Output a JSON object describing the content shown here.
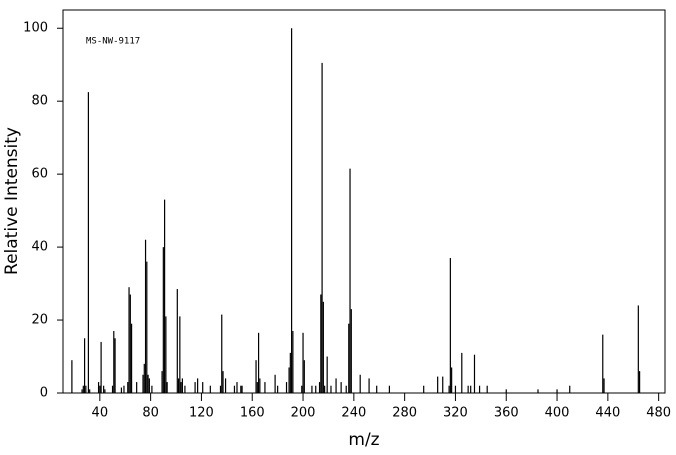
{
  "chart_data": {
    "type": "stem",
    "annotation": "MS-NW-9117",
    "x_label": "m/z",
    "y_label": "Relative Intensity",
    "color": "#000000",
    "xlim": [
      11,
      485
    ],
    "ylim": [
      0,
      105
    ],
    "xticks": [
      40,
      80,
      120,
      160,
      200,
      240,
      280,
      320,
      360,
      400,
      440,
      480
    ],
    "yticks": [
      0,
      20,
      40,
      60,
      80,
      100
    ],
    "x": [
      18,
      26,
      27,
      28,
      29,
      31,
      32,
      39,
      40,
      41,
      43,
      44,
      50,
      51,
      52,
      57,
      59,
      62,
      63,
      64,
      65,
      69,
      74,
      75,
      76,
      77,
      78,
      79,
      81,
      89,
      90,
      91,
      92,
      93,
      101,
      102,
      103,
      104,
      105,
      107,
      115,
      117,
      121,
      127,
      135,
      136,
      137,
      139,
      146,
      148,
      151,
      152,
      163,
      164,
      165,
      166,
      170,
      178,
      180,
      187,
      189,
      190,
      191,
      192,
      199,
      200,
      201,
      207,
      210,
      213,
      214,
      215,
      216,
      217,
      219,
      222,
      226,
      230,
      234,
      236,
      237,
      238,
      245,
      252,
      258,
      268,
      295,
      306,
      310,
      315,
      316,
      317,
      320,
      325,
      330,
      332,
      335,
      339,
      345,
      360,
      385,
      400,
      410,
      436,
      437,
      464,
      465
    ],
    "values": [
      9,
      1,
      2,
      15,
      2,
      82.5,
      1,
      3,
      2,
      14,
      2,
      1,
      2,
      17,
      15,
      1.5,
      2,
      3,
      29,
      27,
      19,
      3,
      5,
      8,
      42,
      36,
      5,
      4,
      2,
      6,
      40,
      53,
      21,
      3,
      28.5,
      4,
      21,
      3,
      4,
      2,
      3,
      4,
      3,
      2,
      2,
      21.5,
      6,
      4,
      2,
      3,
      2,
      2,
      9,
      3,
      16.5,
      4,
      3,
      5,
      2,
      3,
      7,
      11,
      100,
      17,
      2,
      16.5,
      9,
      2,
      2,
      3,
      27,
      90.5,
      25,
      2,
      10,
      2,
      4,
      3,
      2,
      19,
      61.5,
      23,
      5,
      4,
      2,
      2,
      2,
      4.5,
      4.5,
      2,
      37,
      7,
      2,
      11,
      2,
      2,
      10.5,
      2,
      2,
      1,
      1,
      1,
      2,
      16,
      4,
      24,
      6
    ]
  }
}
